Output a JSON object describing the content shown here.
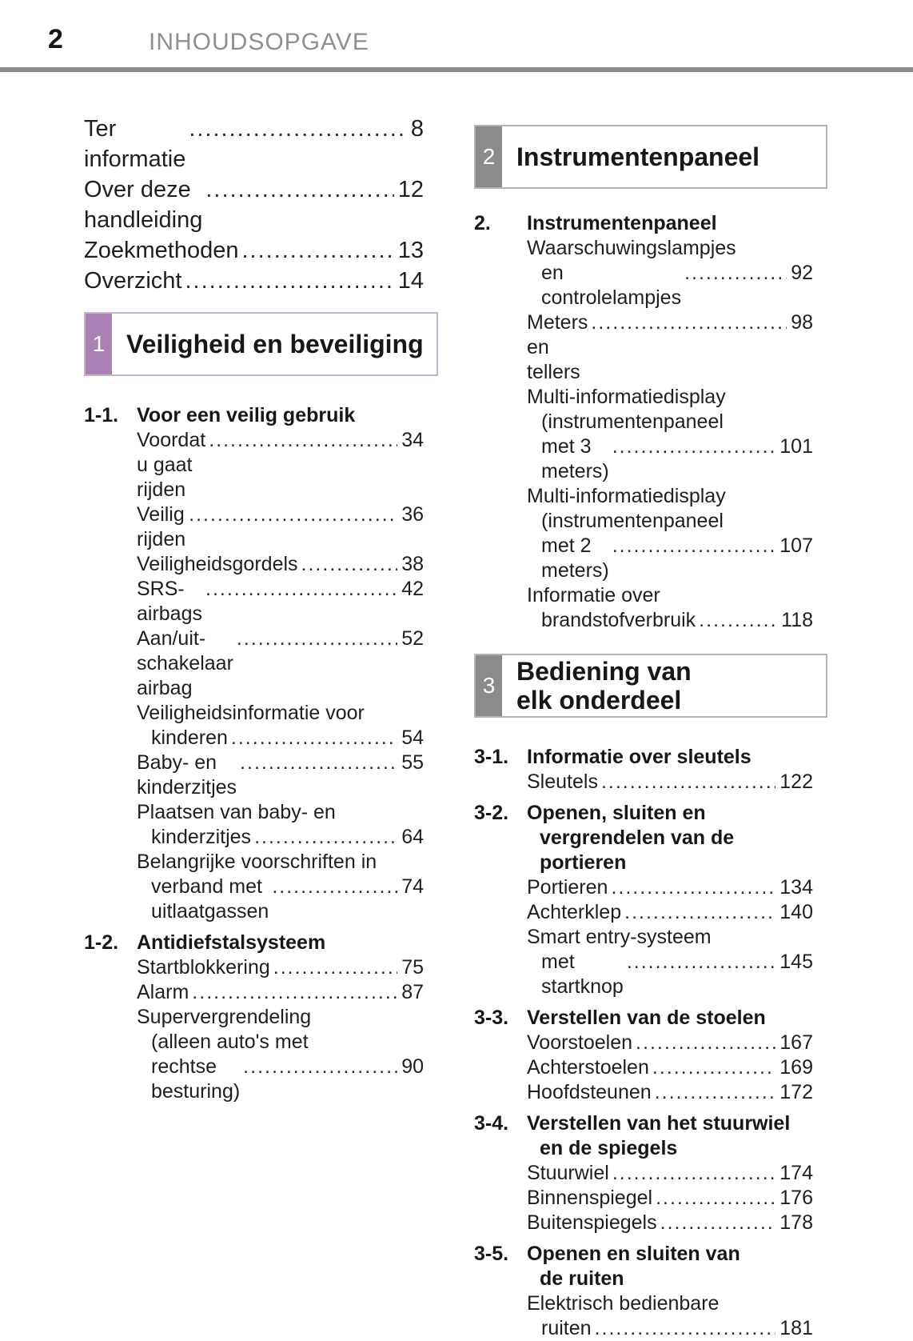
{
  "page": {
    "number": "2",
    "title": "INHOUDSOPGAVE"
  },
  "colors": {
    "chapter1_accent": "#a981b4",
    "chapter1_border": "#c6b2cf",
    "chapter_gray_accent": "#898b8d",
    "chapter_gray_border": "#b4b4b6",
    "rule": "#8a8a8a",
    "header_title": "#8f8f8f",
    "text": "#1f1f1f"
  },
  "columns": [
    {
      "blocks": [
        {
          "type": "entries",
          "style": "intro",
          "entries": [
            {
              "lines": [
                "Ter informatie"
              ],
              "page": "8"
            },
            {
              "lines": [
                "Over deze handleiding"
              ],
              "page": "12"
            },
            {
              "lines": [
                "Zoekmethoden"
              ],
              "page": "13"
            },
            {
              "lines": [
                "Overzicht"
              ],
              "page": "14"
            }
          ]
        },
        {
          "type": "chapter-box",
          "number": "1",
          "title_lines": [
            "Veiligheid en beveiliging"
          ],
          "accent": "#a981b4",
          "border": "#c6b2cf"
        },
        {
          "type": "subsection",
          "number": "1-1.",
          "title_lines": [
            "Voor een veilig gebruik"
          ],
          "entries": [
            {
              "lines": [
                "Voordat u gaat rijden"
              ],
              "page": "34"
            },
            {
              "lines": [
                "Veilig rijden"
              ],
              "page": "36"
            },
            {
              "lines": [
                "Veiligheidsgordels"
              ],
              "page": "38"
            },
            {
              "lines": [
                "SRS-airbags"
              ],
              "page": "42"
            },
            {
              "lines": [
                "Aan/uit-schakelaar airbag"
              ],
              "page": "52"
            },
            {
              "lines": [
                "Veiligheidsinformatie voor",
                "kinderen"
              ],
              "page": "54"
            },
            {
              "lines": [
                "Baby- en kinderzitjes"
              ],
              "page": "55"
            },
            {
              "lines": [
                "Plaatsen van baby- en",
                "kinderzitjes"
              ],
              "page": "64"
            },
            {
              "lines": [
                "Belangrijke voorschriften in",
                "verband met uitlaatgassen"
              ],
              "page": "74"
            }
          ]
        },
        {
          "type": "subsection",
          "number": "1-2.",
          "title_lines": [
            "Antidiefstalsysteem"
          ],
          "entries": [
            {
              "lines": [
                "Startblokkering"
              ],
              "page": "75"
            },
            {
              "lines": [
                "Alarm"
              ],
              "page": "87"
            },
            {
              "lines": [
                "Supervergrendeling",
                "(alleen auto's met",
                "rechtse besturing)"
              ],
              "page": "90"
            }
          ]
        }
      ]
    },
    {
      "blocks": [
        {
          "type": "chapter-box",
          "number": "2",
          "title_lines": [
            "Instrumentenpaneel"
          ],
          "accent": "#898b8d",
          "border": "#b4b4b6"
        },
        {
          "type": "subsection",
          "number": "2.",
          "title_lines": [
            "Instrumentenpaneel"
          ],
          "entries": [
            {
              "lines": [
                "Waarschuwingslampjes",
                "en controlelampjes"
              ],
              "page": "92"
            },
            {
              "lines": [
                "Meters en tellers"
              ],
              "page": "98"
            },
            {
              "lines": [
                "Multi-informatiedisplay",
                "(instrumentenpaneel",
                "met 3 meters)"
              ],
              "page": "101"
            },
            {
              "lines": [
                "Multi-informatiedisplay",
                "(instrumentenpaneel",
                "met 2 meters)"
              ],
              "page": "107"
            },
            {
              "lines": [
                "Informatie over",
                "brandstofverbruik"
              ],
              "page": "118"
            }
          ]
        },
        {
          "type": "chapter-box",
          "number": "3",
          "title_lines": [
            "Bediening van",
            "elk onderdeel"
          ],
          "accent": "#898b8d",
          "border": "#b4b4b6"
        },
        {
          "type": "subsection",
          "number": "3-1.",
          "title_lines": [
            "Informatie over sleutels"
          ],
          "entries": [
            {
              "lines": [
                "Sleutels"
              ],
              "page": "122"
            }
          ]
        },
        {
          "type": "subsection",
          "number": "3-2.",
          "title_lines": [
            "Openen, sluiten en",
            "vergrendelen van de",
            "portieren"
          ],
          "entries": [
            {
              "lines": [
                "Portieren"
              ],
              "page": "134"
            },
            {
              "lines": [
                "Achterklep"
              ],
              "page": "140"
            },
            {
              "lines": [
                "Smart entry-systeem",
                "met startknop"
              ],
              "page": "145"
            }
          ]
        },
        {
          "type": "subsection",
          "number": "3-3.",
          "title_lines": [
            "Verstellen van de stoelen"
          ],
          "entries": [
            {
              "lines": [
                "Voorstoelen"
              ],
              "page": "167"
            },
            {
              "lines": [
                "Achterstoelen"
              ],
              "page": "169"
            },
            {
              "lines": [
                "Hoofdsteunen"
              ],
              "page": "172"
            }
          ]
        },
        {
          "type": "subsection",
          "number": "3-4.",
          "title_lines": [
            "Verstellen van het stuurwiel",
            "en de spiegels"
          ],
          "entries": [
            {
              "lines": [
                "Stuurwiel"
              ],
              "page": "174"
            },
            {
              "lines": [
                "Binnenspiegel"
              ],
              "page": "176"
            },
            {
              "lines": [
                "Buitenspiegels"
              ],
              "page": "178"
            }
          ]
        },
        {
          "type": "subsection",
          "number": "3-5.",
          "title_lines": [
            "Openen en sluiten van",
            "de ruiten"
          ],
          "entries": [
            {
              "lines": [
                "Elektrisch bedienbare",
                "ruiten"
              ],
              "page": "181"
            }
          ]
        }
      ]
    }
  ]
}
